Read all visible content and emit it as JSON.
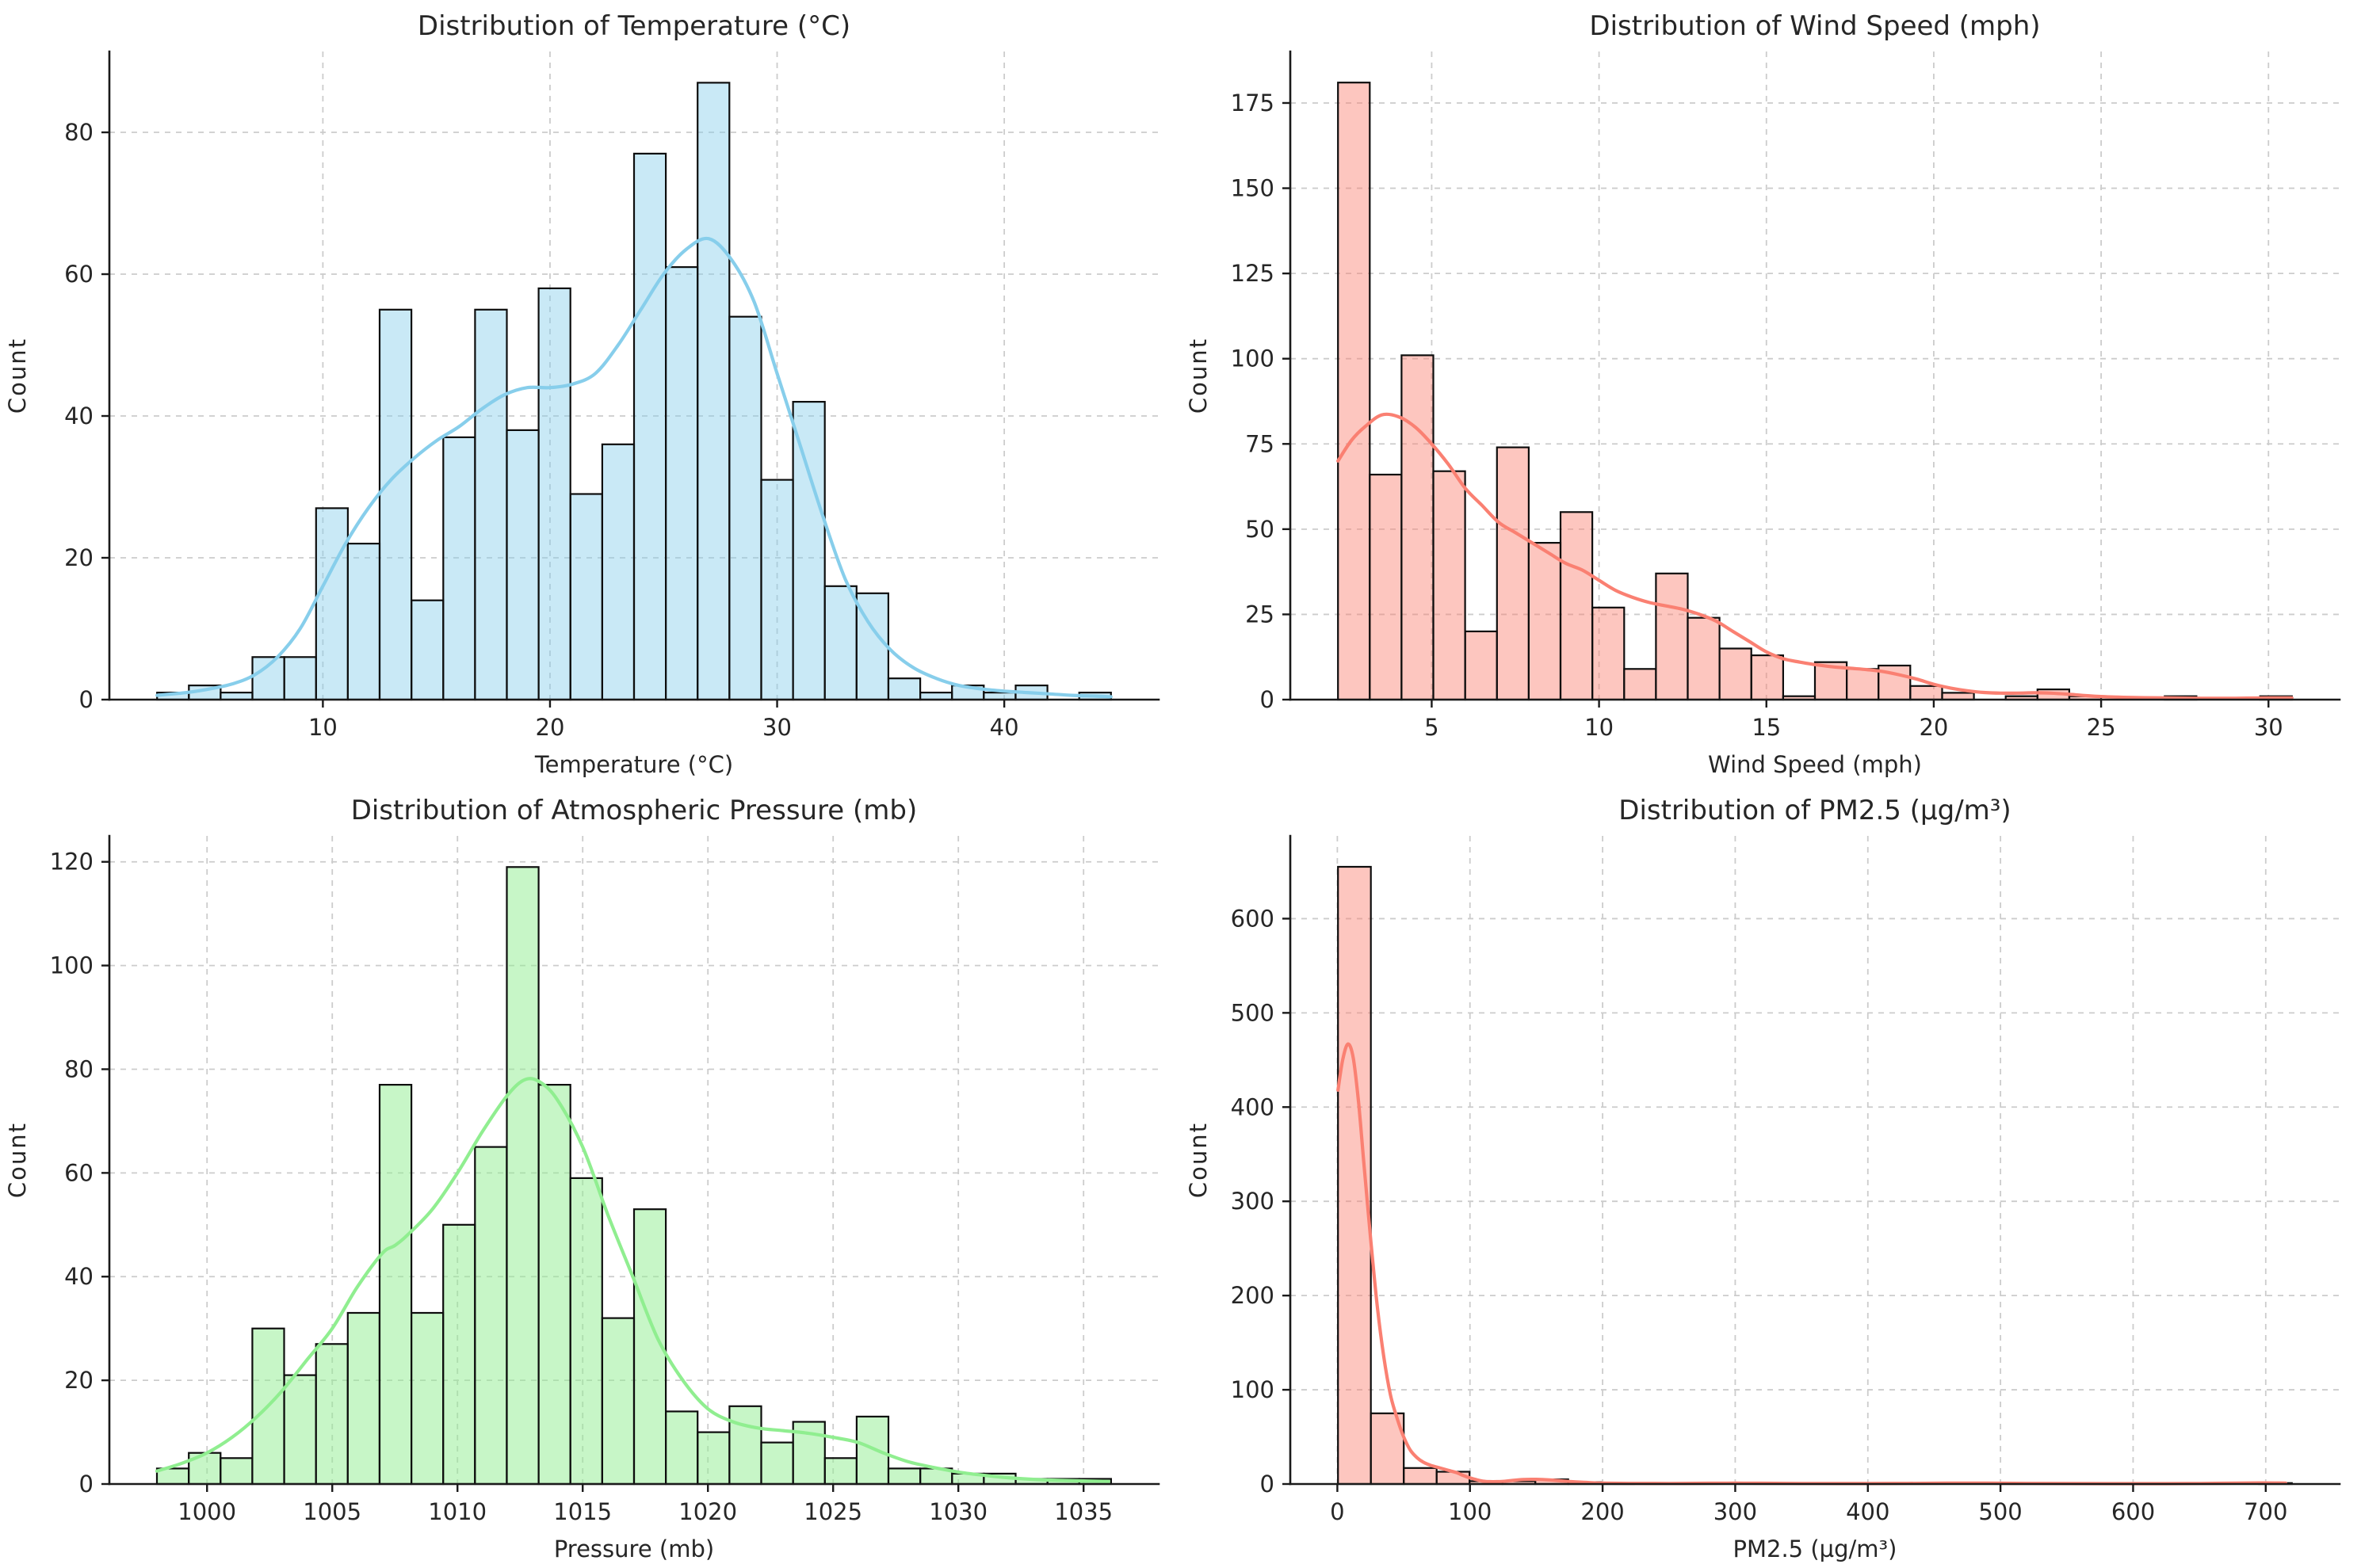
{
  "figure": {
    "background": "#ffffff",
    "grid_color": "#cccccc",
    "text_color": "#262626",
    "spine_color": "#1a1a1a",
    "bar_edge_color": "#0d0d0d"
  },
  "chart_data": [
    {
      "id": "temperature",
      "type": "bar",
      "subtype": "histogram-with-kde",
      "title": "Distribution of Temperature (°C)",
      "xlabel": "Temperature (°C)",
      "ylabel": "Count",
      "bar_color": "#87ceeb",
      "bar_fill_opacity": 0.45,
      "kde_color": "#87ceeb",
      "grid": true,
      "legend_position": "none",
      "bin_start": 2.7,
      "bin_width": 1.4,
      "counts": [
        1,
        2,
        1,
        6,
        6,
        27,
        22,
        55,
        14,
        37,
        55,
        38,
        58,
        29,
        36,
        77,
        61,
        87,
        54,
        31,
        42,
        16,
        15,
        3,
        1,
        2,
        1,
        2,
        0,
        1
      ],
      "x_ticks": [
        10,
        20,
        30,
        40
      ],
      "y_ticks": [
        0,
        20,
        40,
        60,
        80
      ],
      "xlim": [
        0.6,
        46.8
      ],
      "ylim": [
        0,
        91.4
      ],
      "kde": [
        [
          2.7,
          0.6
        ],
        [
          4,
          1
        ],
        [
          5,
          1.5
        ],
        [
          6,
          2.2
        ],
        [
          7,
          3.5
        ],
        [
          8,
          6
        ],
        [
          9,
          10
        ],
        [
          10,
          16
        ],
        [
          11,
          22
        ],
        [
          12,
          27
        ],
        [
          13,
          31
        ],
        [
          14,
          34
        ],
        [
          15,
          36.5
        ],
        [
          16,
          38.5
        ],
        [
          17,
          41
        ],
        [
          18,
          43
        ],
        [
          19,
          44
        ],
        [
          20,
          44
        ],
        [
          21,
          44.5
        ],
        [
          22,
          46
        ],
        [
          23,
          50
        ],
        [
          24,
          55
        ],
        [
          25,
          60
        ],
        [
          26,
          63.5
        ],
        [
          27,
          65
        ],
        [
          28,
          62
        ],
        [
          29,
          56
        ],
        [
          30,
          46
        ],
        [
          31,
          36
        ],
        [
          32,
          26
        ],
        [
          33,
          17
        ],
        [
          34,
          11
        ],
        [
          35,
          7
        ],
        [
          36,
          4.5
        ],
        [
          37,
          3
        ],
        [
          38,
          2
        ],
        [
          39,
          1.5
        ],
        [
          40,
          1.2
        ],
        [
          41,
          1
        ],
        [
          42,
          0.8
        ],
        [
          43,
          0.6
        ],
        [
          44,
          0.5
        ],
        [
          44.7,
          0.4
        ]
      ]
    },
    {
      "id": "wind-speed",
      "type": "bar",
      "subtype": "histogram-with-kde",
      "title": "Distribution of Wind Speed (mph)",
      "xlabel": "Wind Speed (mph)",
      "ylabel": "Count",
      "bar_color": "#fa8072",
      "bar_fill_opacity": 0.45,
      "kde_color": "#fa8072",
      "grid": true,
      "legend_position": "none",
      "bin_start": 2.2,
      "bin_width": 0.95,
      "counts": [
        181,
        66,
        101,
        67,
        20,
        74,
        46,
        55,
        27,
        9,
        37,
        24,
        15,
        13,
        1,
        11,
        9,
        10,
        4,
        2,
        0,
        1,
        3,
        1,
        0,
        0,
        1,
        0,
        0,
        1
      ],
      "x_ticks": [
        5,
        10,
        15,
        20,
        25,
        30
      ],
      "y_ticks": [
        0,
        25,
        50,
        75,
        100,
        125,
        150,
        175
      ],
      "xlim": [
        0.775,
        32.125
      ],
      "ylim": [
        0,
        190.1
      ],
      "kde": [
        [
          2.2,
          70
        ],
        [
          2.6,
          76
        ],
        [
          3,
          80
        ],
        [
          3.5,
          83.5
        ],
        [
          4,
          83
        ],
        [
          4.5,
          80
        ],
        [
          5,
          75
        ],
        [
          5.5,
          69
        ],
        [
          6,
          62
        ],
        [
          6.5,
          57
        ],
        [
          7,
          52
        ],
        [
          7.5,
          49
        ],
        [
          8,
          46
        ],
        [
          8.5,
          43
        ],
        [
          9,
          40
        ],
        [
          9.5,
          38
        ],
        [
          10,
          35
        ],
        [
          10.5,
          32
        ],
        [
          11,
          30
        ],
        [
          11.5,
          28.5
        ],
        [
          12,
          27.5
        ],
        [
          12.5,
          26.5
        ],
        [
          13,
          25
        ],
        [
          13.5,
          23
        ],
        [
          14,
          20
        ],
        [
          14.5,
          17
        ],
        [
          15,
          14
        ],
        [
          15.5,
          12
        ],
        [
          16,
          11
        ],
        [
          16.5,
          10.2
        ],
        [
          17,
          9.6
        ],
        [
          17.5,
          9.2
        ],
        [
          18,
          8.8
        ],
        [
          18.5,
          8.2
        ],
        [
          19,
          7.2
        ],
        [
          19.5,
          6
        ],
        [
          20,
          4.5
        ],
        [
          20.5,
          3.4
        ],
        [
          21,
          2.6
        ],
        [
          21.5,
          2.1
        ],
        [
          22,
          1.9
        ],
        [
          22.5,
          1.9
        ],
        [
          23,
          2
        ],
        [
          23.5,
          1.9
        ],
        [
          24,
          1.6
        ],
        [
          24.5,
          1.2
        ],
        [
          25,
          0.9
        ],
        [
          26,
          0.6
        ],
        [
          27,
          0.5
        ],
        [
          28,
          0.4
        ],
        [
          29,
          0.4
        ],
        [
          30,
          0.5
        ],
        [
          30.7,
          0.5
        ]
      ]
    },
    {
      "id": "pressure",
      "type": "bar",
      "subtype": "histogram-with-kde",
      "title": "Distribution of Atmospheric Pressure (mb)",
      "xlabel": "Pressure (mb)",
      "ylabel": "Count",
      "bar_color": "#90ee90",
      "bar_fill_opacity": 0.5,
      "kde_color": "#90ee90",
      "grid": true,
      "legend_position": "none",
      "bin_start": 998.0,
      "bin_width": 1.27,
      "counts": [
        3,
        6,
        5,
        30,
        21,
        27,
        33,
        77,
        33,
        50,
        65,
        119,
        77,
        59,
        32,
        53,
        14,
        10,
        15,
        8,
        12,
        5,
        13,
        3,
        3,
        2,
        2,
        1,
        1,
        1
      ],
      "x_ticks": [
        1000,
        1005,
        1010,
        1015,
        1020,
        1025,
        1030,
        1035
      ],
      "y_ticks": [
        0,
        20,
        40,
        60,
        80,
        100,
        120
      ],
      "xlim": [
        996.1,
        1038.0
      ],
      "ylim": [
        0,
        125
      ],
      "kde": [
        [
          998,
          2.5
        ],
        [
          999,
          4
        ],
        [
          1000,
          6
        ],
        [
          1001,
          9
        ],
        [
          1002,
          13
        ],
        [
          1003,
          18
        ],
        [
          1004,
          24
        ],
        [
          1005,
          30
        ],
        [
          1006,
          38
        ],
        [
          1007,
          44.5
        ],
        [
          1007.5,
          46
        ],
        [
          1008,
          48
        ],
        [
          1009,
          53
        ],
        [
          1010,
          60
        ],
        [
          1011,
          68
        ],
        [
          1012,
          75
        ],
        [
          1012.7,
          78
        ],
        [
          1013.3,
          77.5
        ],
        [
          1014,
          74
        ],
        [
          1015,
          65
        ],
        [
          1016,
          52
        ],
        [
          1017,
          40
        ],
        [
          1018,
          28
        ],
        [
          1019,
          20
        ],
        [
          1020,
          14.5
        ],
        [
          1021,
          12
        ],
        [
          1022,
          10.8
        ],
        [
          1023,
          10.3
        ],
        [
          1024,
          9.8
        ],
        [
          1025,
          9
        ],
        [
          1026,
          8
        ],
        [
          1027,
          6
        ],
        [
          1028,
          4.3
        ],
        [
          1029,
          3.2
        ],
        [
          1030,
          2.3
        ],
        [
          1031,
          1.7
        ],
        [
          1032,
          1.2
        ],
        [
          1033,
          0.9
        ],
        [
          1034,
          0.7
        ],
        [
          1035,
          0.6
        ],
        [
          1036,
          0.5
        ]
      ]
    },
    {
      "id": "pm25",
      "type": "bar",
      "subtype": "histogram-with-kde",
      "title": "Distribution of PM2.5 (µg/m³)",
      "xlabel": "PM2.5 (µg/m³)",
      "ylabel": "Count",
      "bar_color": "#fa8072",
      "bar_fill_opacity": 0.45,
      "kde_color": "#fa8072",
      "grid": true,
      "legend_position": "none",
      "bin_start": 0.5,
      "bin_width": 24.8,
      "counts": [
        655,
        75,
        17,
        13,
        3,
        3,
        5,
        2,
        1,
        0,
        0,
        0,
        0,
        0,
        0,
        0,
        0,
        0,
        0,
        0,
        0,
        0,
        0,
        0,
        0,
        0,
        0,
        0,
        1
      ],
      "x_ticks": [
        0,
        100,
        200,
        300,
        400,
        500,
        600,
        700
      ],
      "y_ticks": [
        0,
        100,
        200,
        300,
        400,
        500,
        600
      ],
      "xlim": [
        -35.5,
        755.7
      ],
      "ylim": [
        0,
        687.8
      ],
      "kde": [
        [
          0.5,
          418
        ],
        [
          4,
          450
        ],
        [
          8,
          467
        ],
        [
          12,
          452
        ],
        [
          16,
          405
        ],
        [
          20,
          340
        ],
        [
          25,
          262
        ],
        [
          30,
          190
        ],
        [
          35,
          135
        ],
        [
          40,
          95
        ],
        [
          45,
          70
        ],
        [
          50,
          50
        ],
        [
          55,
          36
        ],
        [
          60,
          28
        ],
        [
          65,
          23
        ],
        [
          70,
          20
        ],
        [
          75,
          18
        ],
        [
          80,
          16
        ],
        [
          85,
          14
        ],
        [
          90,
          12
        ],
        [
          95,
          9
        ],
        [
          100,
          6.5
        ],
        [
          105,
          4.5
        ],
        [
          110,
          3
        ],
        [
          115,
          2.5
        ],
        [
          120,
          2.5
        ],
        [
          125,
          2.8
        ],
        [
          130,
          3.5
        ],
        [
          140,
          4.8
        ],
        [
          150,
          5
        ],
        [
          160,
          4.3
        ],
        [
          170,
          3.2
        ],
        [
          180,
          2.2
        ],
        [
          190,
          1.5
        ],
        [
          200,
          1
        ],
        [
          220,
          0.7
        ],
        [
          250,
          0.6
        ],
        [
          280,
          0.8
        ],
        [
          300,
          0.9
        ],
        [
          320,
          0.8
        ],
        [
          350,
          0.6
        ],
        [
          380,
          0.5
        ],
        [
          400,
          0.5
        ],
        [
          430,
          0.7
        ],
        [
          460,
          0.9
        ],
        [
          490,
          0.9
        ],
        [
          520,
          0.7
        ],
        [
          550,
          0.5
        ],
        [
          580,
          0.4
        ],
        [
          610,
          0.4
        ],
        [
          640,
          0.5
        ],
        [
          670,
          0.8
        ],
        [
          695,
          1.2
        ],
        [
          715,
          1
        ]
      ]
    }
  ]
}
